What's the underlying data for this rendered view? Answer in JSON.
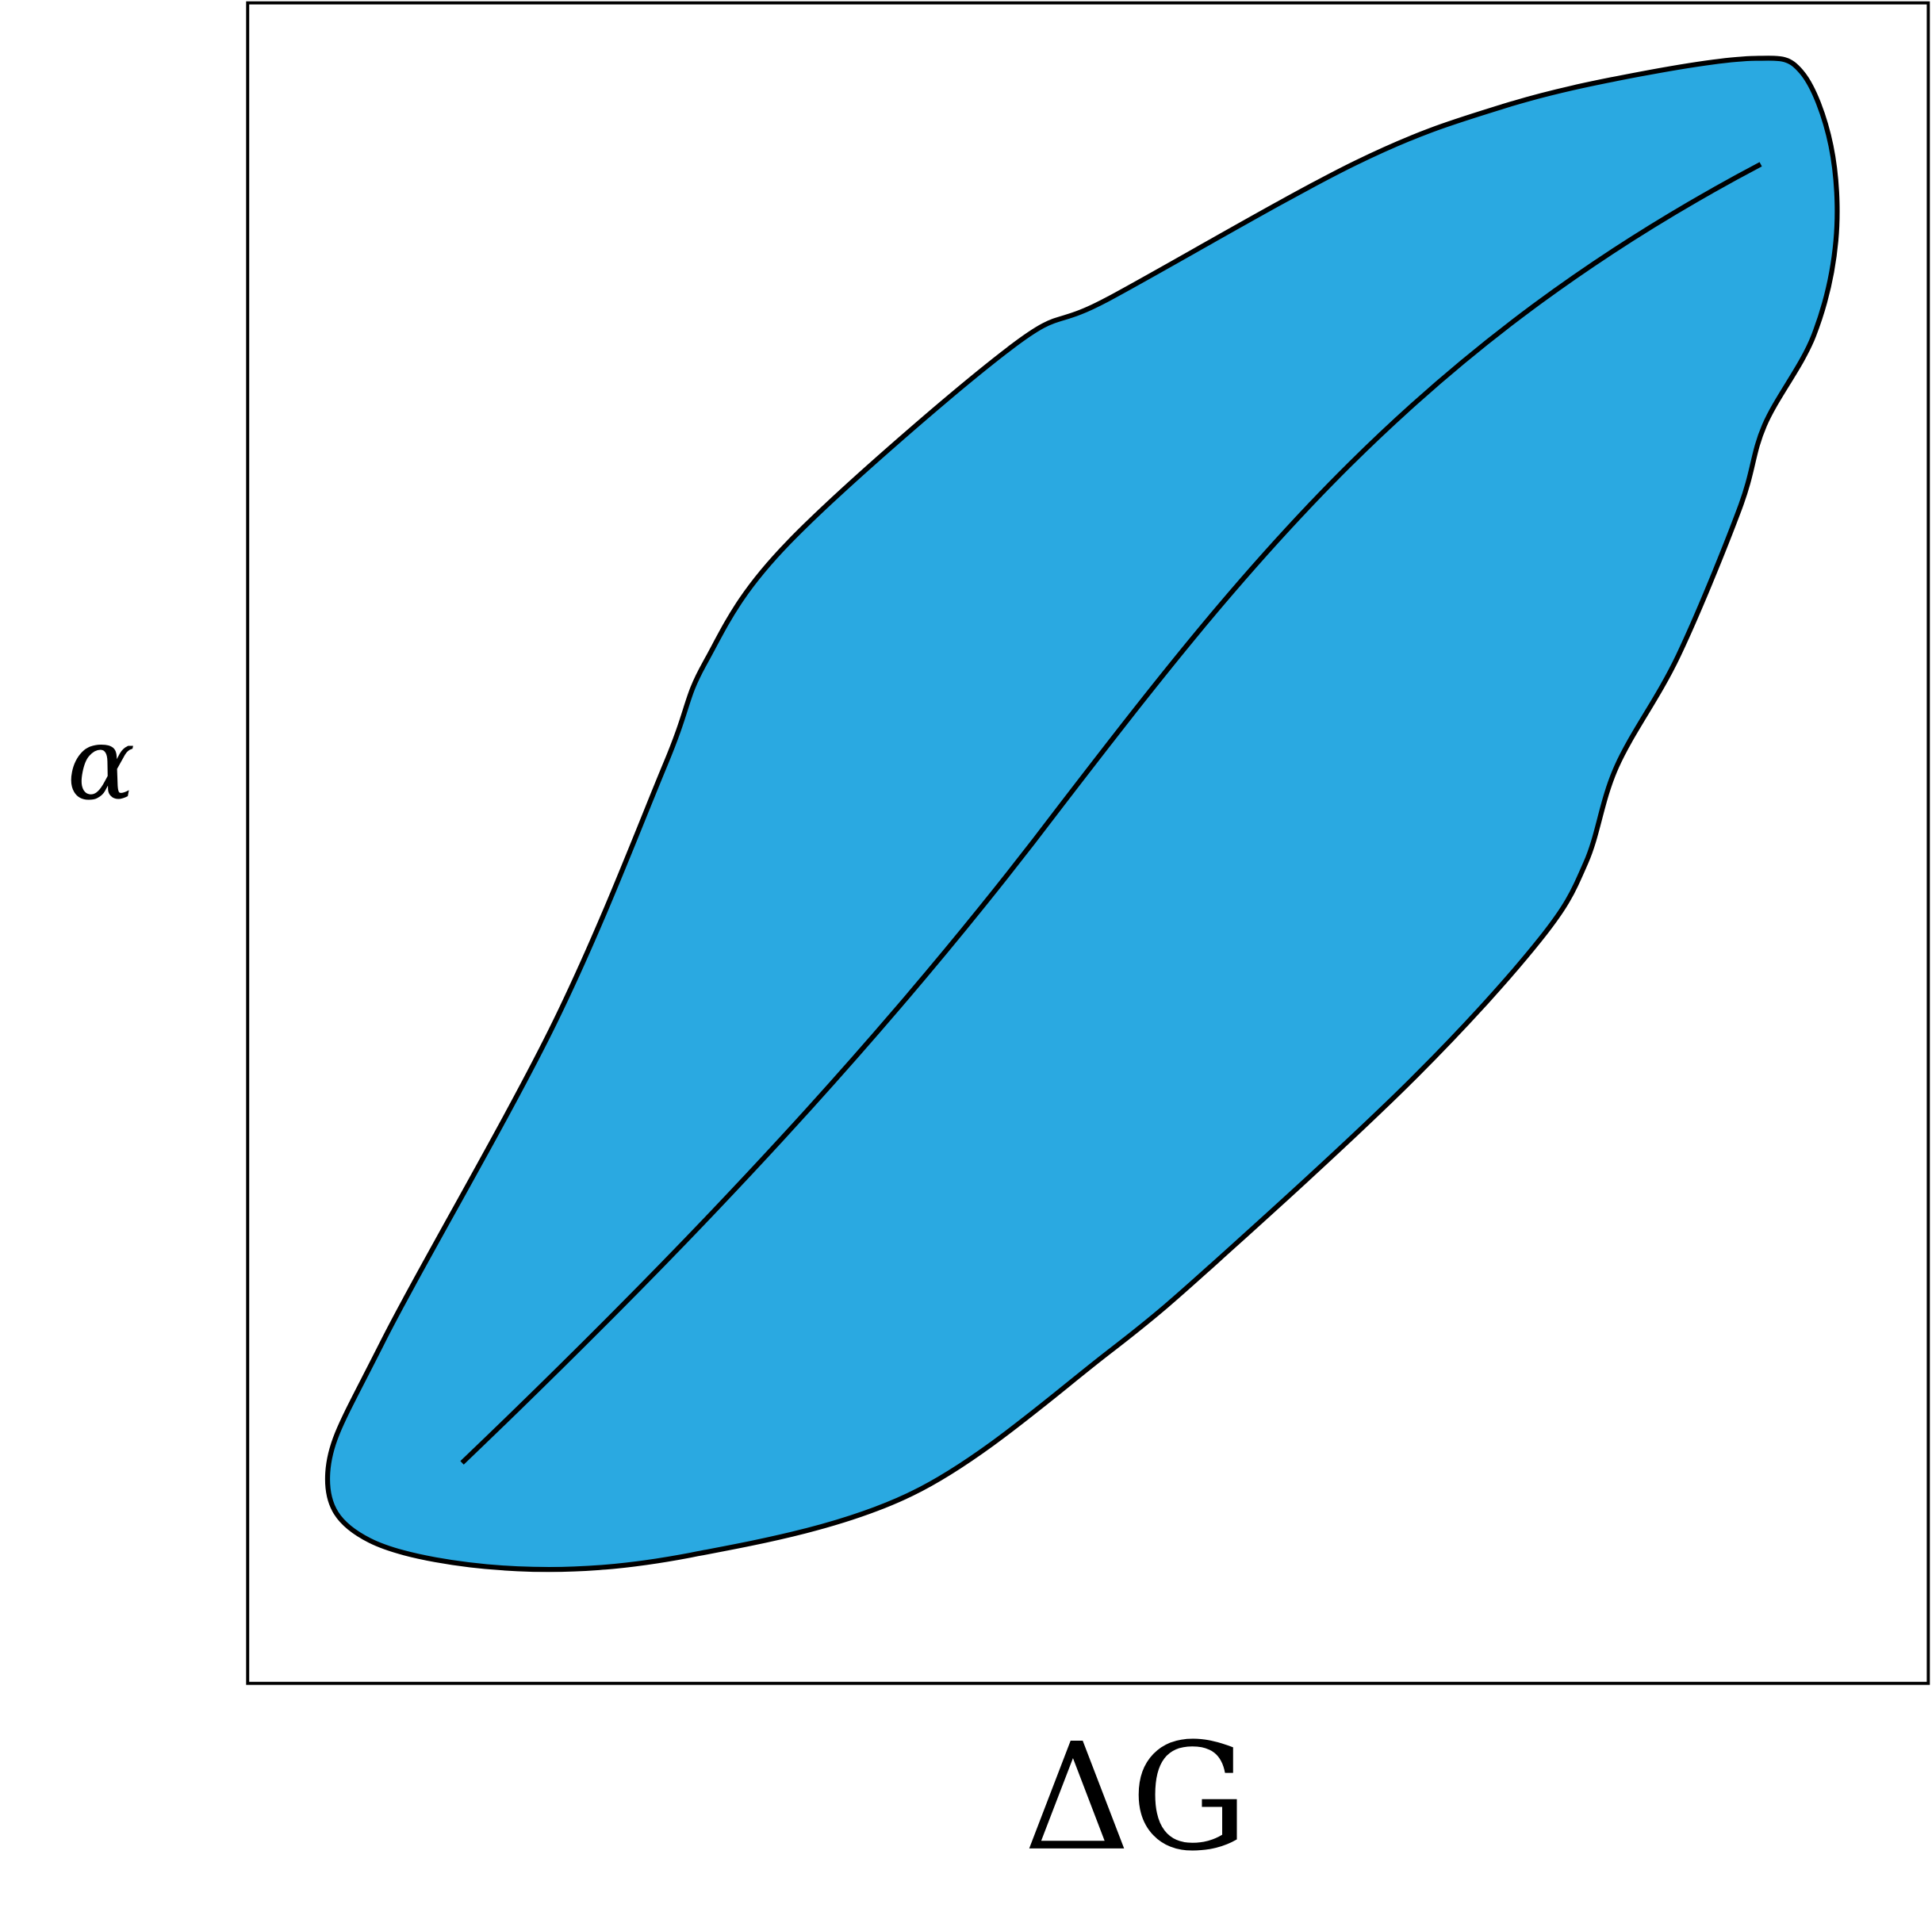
{
  "axes": {
    "x_label": "ΔG",
    "y_label": "α"
  }
}
